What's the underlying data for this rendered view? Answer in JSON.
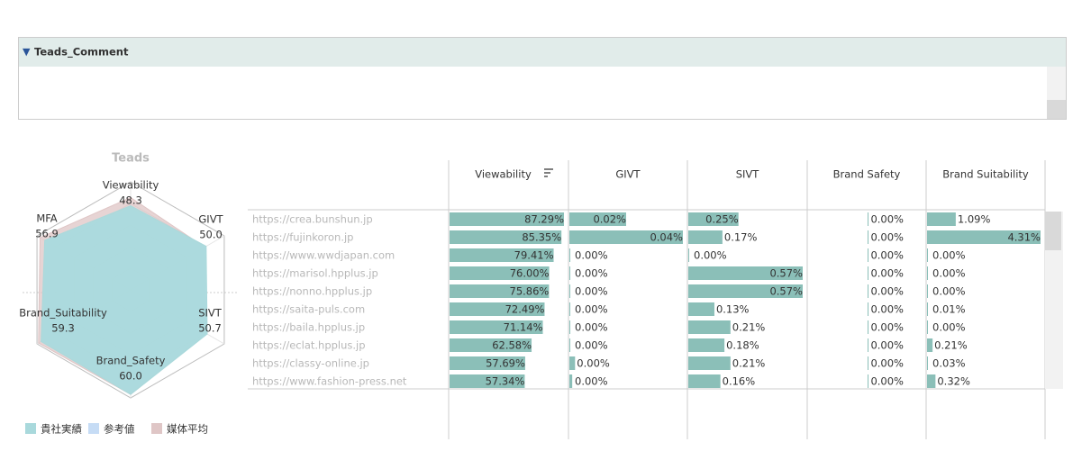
{
  "header": {
    "title": "Teads_Comment"
  },
  "chart_data": {
    "type": "radar",
    "title": "Teads",
    "categories": [
      "Viewability",
      "GIVT",
      "SIVT",
      "Brand_Safety",
      "Brand_Suitability",
      "MFA"
    ],
    "series": [
      {
        "name": "貴社実績",
        "color": "#a9d9dc",
        "values": [
          48.3,
          50.0,
          50.7,
          60.0,
          59.3,
          56.9
        ],
        "value_labels": [
          "48.3",
          "50.0",
          "50.7",
          "60.0",
          "59.3",
          "56.9"
        ]
      },
      {
        "name": "参考値",
        "color": "#c6dcf5",
        "values": [
          47,
          49,
          50,
          59,
          58,
          56
        ]
      },
      {
        "name": "媒体平均",
        "color": "#dfc6c6",
        "values": [
          53,
          49,
          50,
          60,
          61,
          60
        ]
      }
    ],
    "rlim": [
      0,
      62
    ],
    "rticks": [
      12.4,
      24.8,
      37.2,
      49.6,
      62
    ]
  },
  "table": {
    "columns": [
      "Viewability",
      "GIVT",
      "SIVT",
      "Brand Safety",
      "Brand Suitability"
    ],
    "urls": [
      "https://crea.bunshun.jp",
      "https://fujinkoron.jp",
      "https://www.wwdjapan.com",
      "https://marisol.hpplus.jp",
      "https://nonno.hpplus.jp",
      "https://saita-puls.com",
      "https://baila.hpplus.jp",
      "https://eclat.hpplus.jp",
      "https://classy-online.jp",
      "https://www.fashion-press.net"
    ],
    "bar_color": "#8bbfb8",
    "series": [
      {
        "name": "Viewability",
        "values": [
          87.29,
          85.35,
          79.41,
          76.0,
          75.86,
          72.49,
          71.14,
          62.58,
          57.69,
          57.34
        ],
        "value_labels": [
          "87.29%",
          "85.35%",
          "79.41%",
          "76.00%",
          "75.86%",
          "72.49%",
          "71.14%",
          "62.58%",
          "57.69%",
          "57.34%"
        ]
      },
      {
        "name": "GIVT",
        "values": [
          0.02,
          0.04,
          0,
          0,
          0,
          0,
          0,
          0,
          0.002,
          0.001
        ],
        "value_labels": [
          "0.02%",
          "0.04%",
          "0.00%",
          "0.00%",
          "0.00%",
          "0.00%",
          "0.00%",
          "0.00%",
          "0.00%",
          "0.00%"
        ]
      },
      {
        "name": "SIVT",
        "values": [
          0.25,
          0.17,
          0,
          0.57,
          0.57,
          0.13,
          0.21,
          0.18,
          0.21,
          0.16
        ],
        "value_labels": [
          "0.25%",
          "0.17%",
          "0.00%",
          "0.57%",
          "0.57%",
          "0.13%",
          "0.21%",
          "0.18%",
          "0.21%",
          "0.16%"
        ]
      },
      {
        "name": "Brand Safety",
        "values": [
          0,
          0,
          0,
          0,
          0,
          0,
          0,
          0,
          0,
          0
        ],
        "value_labels": [
          "0.00%",
          "0.00%",
          "0.00%",
          "0.00%",
          "0.00%",
          "0.00%",
          "0.00%",
          "0.00%",
          "0.00%",
          "0.00%"
        ]
      },
      {
        "name": "Brand Suitability",
        "values": [
          1.09,
          4.31,
          0,
          0,
          0,
          0.01,
          0,
          0.21,
          0.03,
          0.32
        ],
        "value_labels": [
          "1.09%",
          "4.31%",
          "0.00%",
          "0.00%",
          "0.00%",
          "0.01%",
          "0.00%",
          "0.21%",
          "0.03%",
          "0.32%"
        ]
      }
    ]
  }
}
